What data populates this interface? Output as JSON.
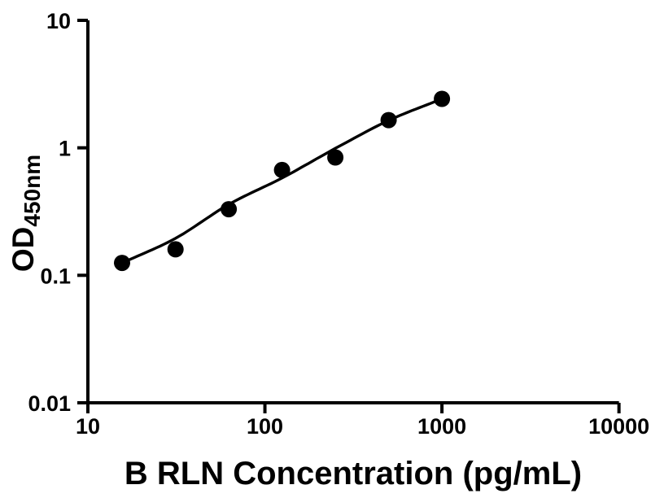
{
  "figure": {
    "background": "#ffffff",
    "ink_color": "#000000"
  },
  "chart_data": {
    "type": "scatter",
    "subtype": "elisa-standard-curve-with-fit",
    "title": "",
    "xlabel": "B RLN Concentration (pg/mL)",
    "ylabel": "OD",
    "ylabel_subscript": "450nm",
    "x_scale": "log10",
    "y_scale": "log10",
    "xlim": [
      10,
      10000
    ],
    "ylim": [
      0.01,
      10
    ],
    "grid": false,
    "legend": false,
    "x_ticks": [
      {
        "value": 10,
        "label": "10"
      },
      {
        "value": 100,
        "label": "100"
      },
      {
        "value": 1000,
        "label": "1000"
      },
      {
        "value": 10000,
        "label": "10000"
      }
    ],
    "y_ticks": [
      {
        "value": 0.01,
        "label": "0.01"
      },
      {
        "value": 0.1,
        "label": "0.1"
      },
      {
        "value": 1,
        "label": "1"
      },
      {
        "value": 10,
        "label": "10"
      }
    ],
    "series": [
      {
        "name": "standard-data-points",
        "type": "scatter",
        "marker": "filled-circle",
        "color": "#000000",
        "x": [
          15.6,
          31.25,
          62.5,
          125,
          250,
          500,
          1000
        ],
        "y": [
          0.125,
          0.16,
          0.33,
          0.67,
          0.84,
          1.65,
          2.42
        ]
      },
      {
        "name": "fit-curve",
        "type": "smooth-line",
        "color": "#000000",
        "x": [
          15.6,
          31.25,
          62.5,
          125,
          250,
          500,
          1000
        ],
        "y": [
          0.125,
          0.195,
          0.36,
          0.58,
          0.99,
          1.64,
          2.42
        ]
      }
    ]
  }
}
